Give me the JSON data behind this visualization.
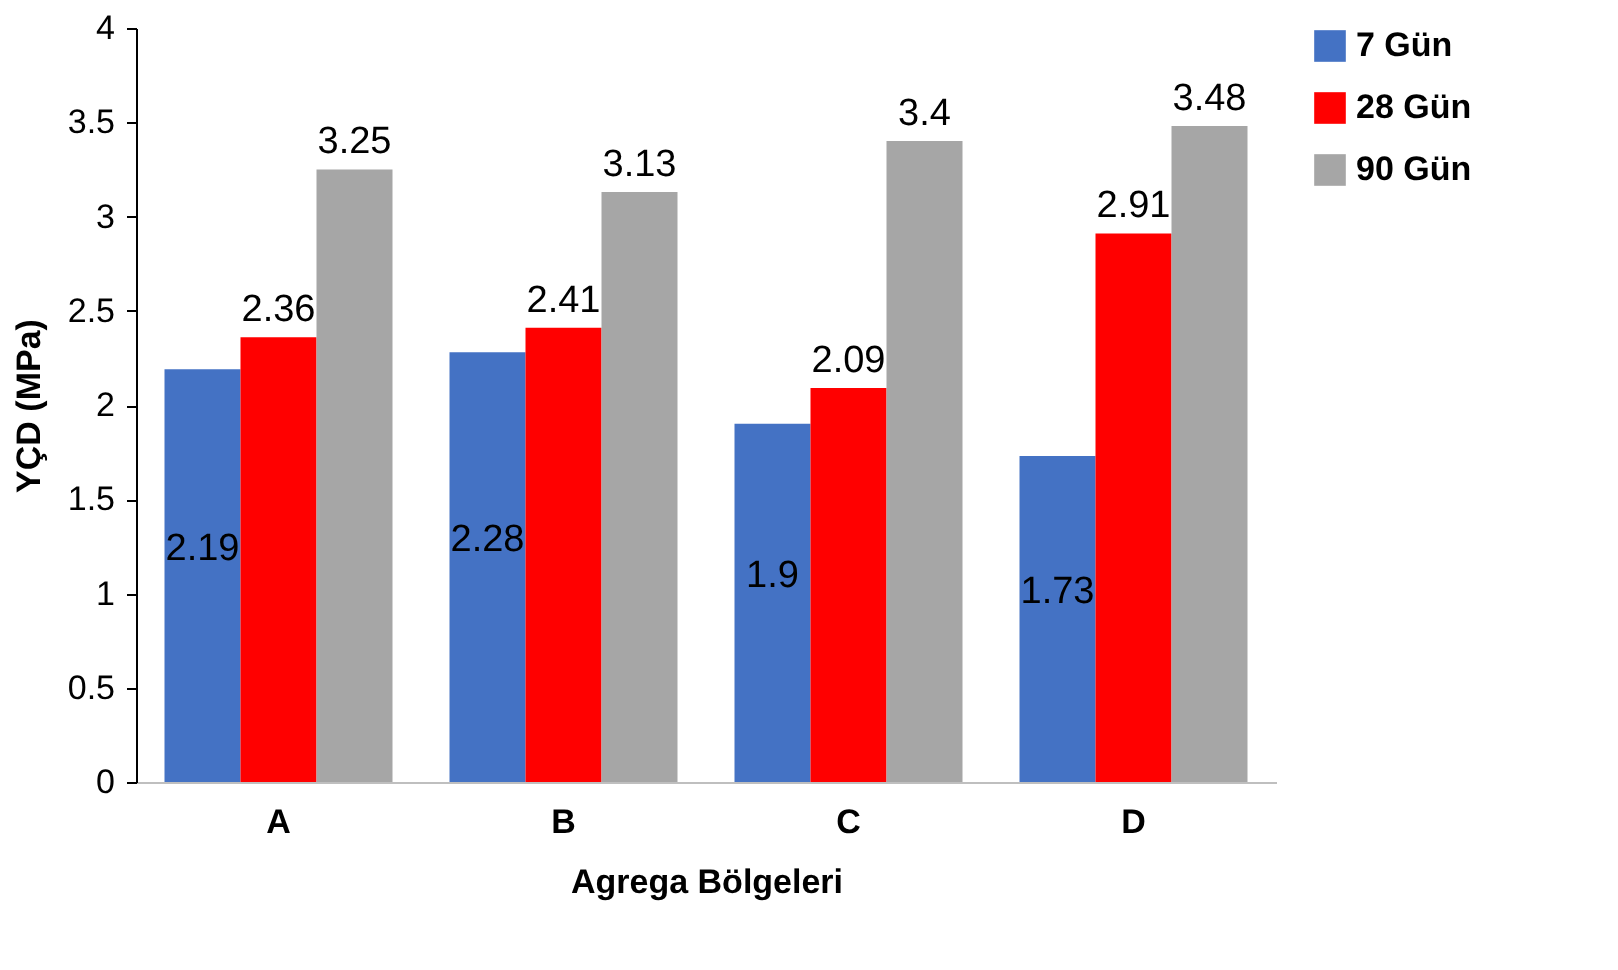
{
  "chart_data": {
    "type": "bar",
    "xlabel": "Agrega Bölgeleri",
    "ylabel": "YÇD (MPa)",
    "categories": [
      "A",
      "B",
      "C",
      "D"
    ],
    "series": [
      {
        "name": "7 Gün",
        "color": "#4472c4",
        "values": [
          2.19,
          2.28,
          1.9,
          1.73
        ]
      },
      {
        "name": "28 Gün",
        "color": "#ff0000",
        "values": [
          2.36,
          2.41,
          2.09,
          2.91
        ]
      },
      {
        "name": "90 Gün",
        "color": "#a6a6a6",
        "values": [
          3.25,
          3.13,
          3.4,
          3.48
        ]
      }
    ],
    "ylim": [
      0,
      4
    ],
    "yticks": [
      0,
      0.5,
      1,
      1.5,
      2,
      2.5,
      3,
      3.5,
      4
    ],
    "grid": false,
    "legend": "right",
    "data_labels": true
  }
}
